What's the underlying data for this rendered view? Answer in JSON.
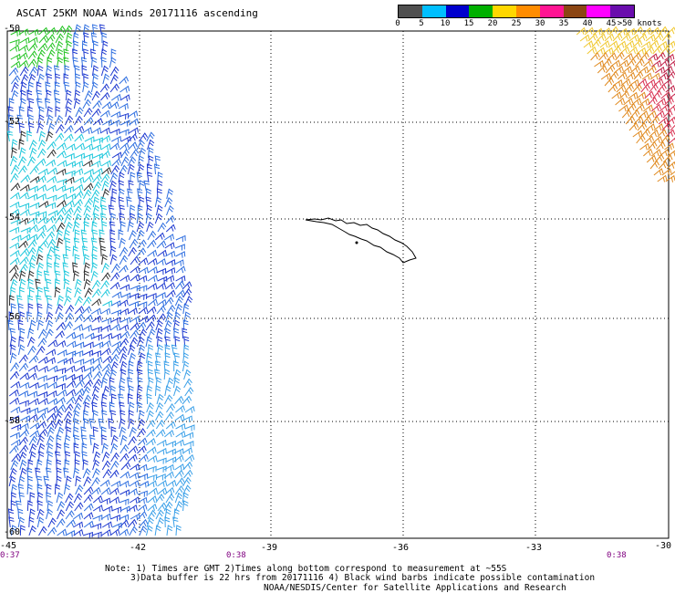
{
  "title": "ASCAT 25KM NOAA Winds 20171116 ascending",
  "scale": {
    "colors": [
      "#505050",
      "#00bfff",
      "#0000cd",
      "#00b000",
      "#ffd700",
      "#ff8c00",
      "#ff1493",
      "#8b4513",
      "#ff00ff",
      "#6a0dad"
    ],
    "labels": [
      "0",
      "5",
      "10",
      "15",
      "20",
      "25",
      "30",
      "35",
      "40",
      "45",
      ">50 knots"
    ]
  },
  "axes": {
    "lat_labels": [
      "-50",
      "-52",
      "-54",
      "-56",
      "-58",
      "-60"
    ],
    "lon_labels": [
      "-45",
      "-42",
      "-39",
      "-36",
      "-33",
      "-30"
    ]
  },
  "times": [
    "0:37",
    "0:38",
    "0:38"
  ],
  "notes": [
    "Note: 1) Times are GMT 2)Times along bottom correspond to measurement at ~55S",
    "3)Data buffer is 22 hrs from 20171116 4) Black wind barbs indicate possible contamination",
    "NOAA/NESDIS/Center for Satellite Applications and Research"
  ]
}
